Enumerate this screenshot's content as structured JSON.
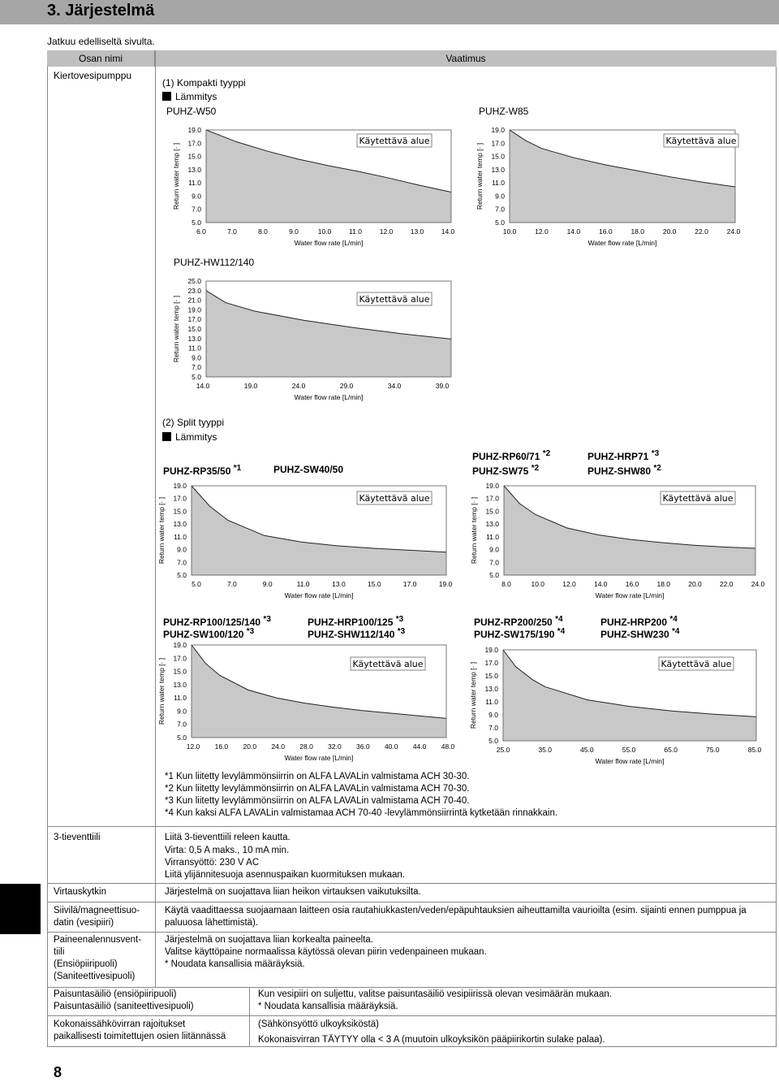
{
  "header": {
    "title": "3. Järjestelmä"
  },
  "continued": "Jatkuu edelliseltä sivulta.",
  "table": {
    "col1": "Osan nimi",
    "col2": "Vaatimus"
  },
  "pump": {
    "name": "Kiertovesipumppu",
    "section1": "(1) Kompakti tyyppi",
    "heating": "Lämmitys",
    "section2": "(2) Split tyyppi",
    "labels": {
      "w50": "PUHZ-W50",
      "w85": "PUHZ-W85",
      "hw112": "PUHZ-HW112/140",
      "rp35": "PUHZ-RP35/50",
      "rp35_sup": "*1",
      "sw40": "PUHZ-SW40/50",
      "rp60": "PUHZ-RP60/71",
      "rp60_sup": "*2",
      "sw75": "PUHZ-SW75",
      "sw75_sup": "*2",
      "hrp71": "PUHZ-HRP71",
      "hrp71_sup": "*3",
      "shw80": "PUHZ-SHW80",
      "shw80_sup": "*2",
      "rp100": "PUHZ-RP100/125/140",
      "rp100_sup": "*3",
      "sw100": "PUHZ-SW100/120",
      "sw100_sup": "*3",
      "hrp100": "PUHZ-HRP100/125",
      "hrp100_sup": "*3",
      "shw112": "PUHZ-SHW112/140",
      "shw112_sup": "*3",
      "rp200": "PUHZ-RP200/250",
      "rp200_sup": "*4",
      "sw175": "PUHZ-SW175/190",
      "sw175_sup": "*4",
      "hrp200": "PUHZ-HRP200",
      "hrp200_sup": "*4",
      "shw230": "PUHZ-SHW230",
      "shw230_sup": "*4"
    },
    "footnotes": [
      "*1 Kun liitetty levylämmönsiirrin on ALFA LAVALin valmistama ACH 30-30.",
      "*2 Kun liitetty levylämmönsiirrin on ALFA LAVALin valmistama ACH 70-30.",
      "*3 Kun liitetty levylämmönsiirrin on ALFA LAVALin valmistama ACH 70-40.",
      "*4 Kun kaksi ALFA LAVALin valmistamaa ACH 70-40 -levylämmönsiirrintä kytketään rinnakkain."
    ]
  },
  "chart_data": [
    {
      "type": "area",
      "title": "PUHZ-W50",
      "xlabel": "Water flow rate [L/min]",
      "ylabel": "Return water temp [· ]",
      "annotation": "Käytettävä alue",
      "x_ticks": [
        "6.0",
        "7.0",
        "8.0",
        "9.0",
        "10.0",
        "11.0",
        "12.0",
        "13.0",
        "14.0"
      ],
      "y_ticks": [
        "19.0",
        "17.0",
        "15.0",
        "13.0",
        "11.0",
        "9.0",
        "7.0",
        "5.0"
      ],
      "xlim": [
        6,
        14
      ],
      "ylim": [
        5,
        19
      ],
      "x": [
        6,
        7,
        8,
        9,
        10,
        11,
        12,
        13,
        14
      ],
      "y": [
        19,
        17.2,
        15.8,
        14.6,
        13.6,
        12.7,
        11.7,
        10.6,
        9.6
      ]
    },
    {
      "type": "area",
      "title": "PUHZ-W85",
      "xlabel": "Water flow rate [L/min]",
      "ylabel": "Return water temp [· ]",
      "annotation": "Käytettävä alue",
      "x_ticks": [
        "10.0",
        "12.0",
        "14.0",
        "16.0",
        "18.0",
        "20.0",
        "22.0",
        "24.0"
      ],
      "y_ticks": [
        "19.0",
        "17.0",
        "15.0",
        "13.0",
        "11.0",
        "9.0",
        "7.0",
        "5.0"
      ],
      "xlim": [
        10,
        24
      ],
      "ylim": [
        5,
        19
      ],
      "x": [
        10,
        11,
        12,
        14,
        16,
        18,
        20,
        22,
        24
      ],
      "y": [
        19,
        17.4,
        16.2,
        14.8,
        13.7,
        12.8,
        11.9,
        11.1,
        10.4
      ]
    },
    {
      "type": "area",
      "title": "PUHZ-HW112/140",
      "xlabel": "Water flow rate [L/min]",
      "ylabel": "Return water temp [· ]",
      "annotation": "Käytettävä alue",
      "x_ticks": [
        "14.0",
        "19.0",
        "24.0",
        "29.0",
        "34.0",
        "39.0"
      ],
      "y_ticks": [
        "25.0",
        "23.0",
        "21.0",
        "19.0",
        "17.0",
        "15.0",
        "13.0",
        "11.0",
        "9.0",
        "7.0",
        "5.0"
      ],
      "xlim": [
        14,
        39
      ],
      "ylim": [
        5,
        25
      ],
      "x": [
        14,
        16,
        19,
        24,
        29,
        34,
        39
      ],
      "y": [
        23,
        20.5,
        18.7,
        16.8,
        15.3,
        14,
        12.9
      ]
    },
    {
      "type": "area",
      "title": "PUHZ-RP35/50 / PUHZ-SW40/50",
      "xlabel": "Water flow rate [L/min]",
      "ylabel": "Return water temp [· ]",
      "annotation": "Käytettävä alue",
      "x_ticks": [
        "5.0",
        "7.0",
        "9.0",
        "11.0",
        "13.0",
        "15.0",
        "17.0",
        "19.0"
      ],
      "y_ticks": [
        "19.0",
        "17.0",
        "15.0",
        "13.0",
        "11.0",
        "9.0",
        "7.0",
        "5.0"
      ],
      "xlim": [
        5,
        19
      ],
      "ylim": [
        5,
        19
      ],
      "x": [
        5,
        6,
        7,
        9,
        11,
        13,
        15,
        17,
        19
      ],
      "y": [
        19,
        15.8,
        13.6,
        11.2,
        10.2,
        9.6,
        9.2,
        8.9,
        8.6
      ]
    },
    {
      "type": "area",
      "title": "PUHZ-RP60/71 / PUHZ-SW75 / PUHZ-HRP71 / PUHZ-SHW80",
      "xlabel": "Water flow rate [L/min]",
      "ylabel": "Return water temp [· ]",
      "annotation": "Käytettävä alue",
      "x_ticks": [
        "8.0",
        "10.0",
        "12.0",
        "14.0",
        "16.0",
        "18.0",
        "20.0",
        "22.0",
        "24.0"
      ],
      "y_ticks": [
        "19.0",
        "17.0",
        "15.0",
        "13.0",
        "11.0",
        "9.0",
        "7.0",
        "5.0"
      ],
      "xlim": [
        8,
        24
      ],
      "ylim": [
        5,
        19
      ],
      "x": [
        8,
        9,
        10,
        12,
        14,
        16,
        18,
        20,
        22,
        24
      ],
      "y": [
        19,
        16.2,
        14.5,
        12.4,
        11.3,
        10.6,
        10.1,
        9.7,
        9.4,
        9.2
      ]
    },
    {
      "type": "area",
      "title": "PUHZ-RP100/125/140 / PUHZ-SW100/120 / PUHZ-HRP100/125 / PUHZ-SHW112/140",
      "xlabel": "Water flow rate [L/min]",
      "ylabel": "Return water temp [· ]",
      "annotation": "Käytettävä alue",
      "x_ticks": [
        "12.0",
        "16.0",
        "20.0",
        "24.0",
        "28.0",
        "32.0",
        "36.0",
        "40.0",
        "44.0",
        "48.0"
      ],
      "y_ticks": [
        "19.0",
        "17.0",
        "15.0",
        "13.0",
        "11.0",
        "9.0",
        "7.0",
        "5.0"
      ],
      "xlim": [
        12,
        48
      ],
      "ylim": [
        5,
        19
      ],
      "x": [
        12,
        14,
        16,
        20,
        24,
        28,
        32,
        36,
        40,
        44,
        48
      ],
      "y": [
        19,
        16.2,
        14.4,
        12.2,
        11,
        10.2,
        9.6,
        9.1,
        8.7,
        8.3,
        7.9
      ]
    },
    {
      "type": "area",
      "title": "PUHZ-RP200/250 / PUHZ-SW175/190 / PUHZ-HRP200 / PUHZ-SHW230",
      "xlabel": "Water flow rate [L/min]",
      "ylabel": "Return water temp [· ]",
      "annotation": "Käytettävä alue",
      "x_ticks": [
        "25.0",
        "35.0",
        "45.0",
        "55.0",
        "65.0",
        "75.0",
        "85.0"
      ],
      "y_ticks": [
        "19.0",
        "17.0",
        "15.0",
        "13.0",
        "11.0",
        "9.0",
        "7.0",
        "5.0"
      ],
      "xlim": [
        25,
        85
      ],
      "ylim": [
        5,
        19
      ],
      "x": [
        25,
        28,
        32,
        35,
        45,
        55,
        65,
        75,
        85
      ],
      "y": [
        19,
        16.4,
        14.4,
        13.3,
        11.3,
        10.3,
        9.6,
        9.1,
        8.7
      ]
    }
  ],
  "rows": [
    {
      "name": "3-tieventtiili",
      "req": [
        "Liitä 3-tieventtiili releen kautta.",
        "Virta: 0,5 A maks., 10 mA min.",
        "Virransyöttö: 230 V AC",
        "Liitä ylijännitesuoja asennuspaikan kuormituksen mukaan."
      ]
    },
    {
      "name": "Virtauskytkin",
      "req": [
        "Järjestelmä on suojattava liian heikon virtauksen vaikutuksilta."
      ]
    },
    {
      "name": "Siivilä/magneettisuo-",
      "name2": "datin (vesipiiri)",
      "req": [
        "Käytä vaadittaessa suojaamaan laitteen osia rautahiukkasten/veden/epäpuhtauksien aiheuttamilta vaurioilta (esim. sijainti ennen pumppua ja",
        "paluuosa lähettimistä)."
      ]
    },
    {
      "name": "Paineenalennusvent-",
      "name2": "tiili",
      "name3": "(Ensiöpiiripuoli)",
      "name4": "(Saniteettivesipuoli)",
      "req": [
        "Järjestelmä on suojattava liian korkealta paineelta.",
        "Valitse käyttöpaine normaalissa käytössä olevan piirin vedenpaineen mukaan.",
        "* Noudata kansallisia määräyksiä."
      ]
    },
    {
      "name": "Paisuntasäiliö (ensiöpiiripuoli)",
      "name2": "Paisuntasäiliö (saniteettivesipuoli)",
      "req": [
        "Kun vesipiiri on suljettu, valitse paisuntasäiliö vesipiirissä olevan vesimäärän mukaan.",
        "* Noudata kansallisia määräyksiä."
      ]
    },
    {
      "name": "Kokonaissähkövirran rajoitukset",
      "name2": "paikallisesti toimitettujen osien liitännässä",
      "req": [
        "(Sähkönsyöttö ulkoyksiköstä)",
        "Kokonaisvirran TÄYTYY olla < 3 A (muutoin ulkoyksikön pääpiirikortin sulake palaa)."
      ]
    }
  ],
  "page_number": "8"
}
